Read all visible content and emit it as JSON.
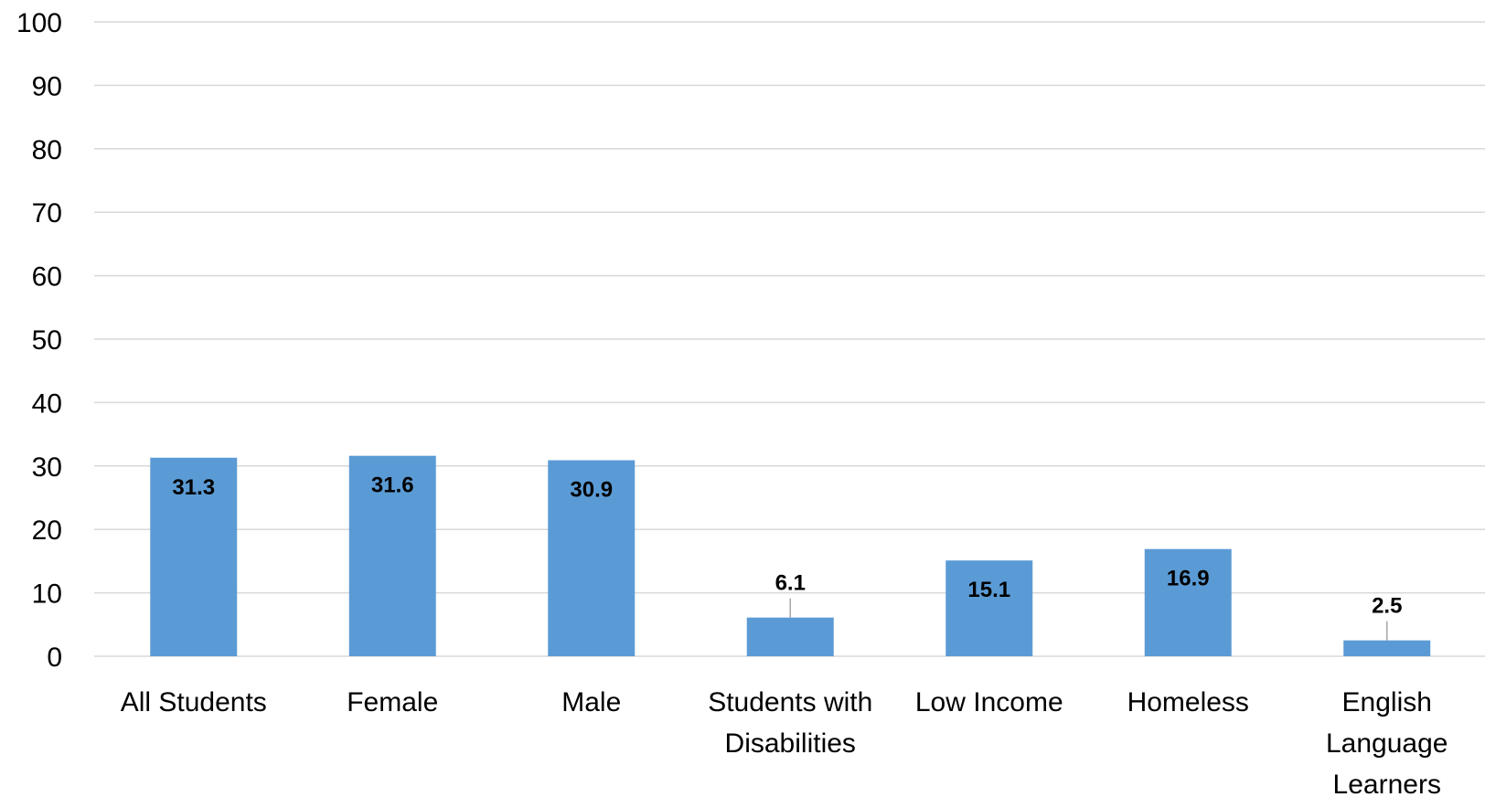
{
  "chart_data": {
    "type": "bar",
    "categories": [
      [
        "All Students"
      ],
      [
        "Female"
      ],
      [
        "Male"
      ],
      [
        "Students with",
        "Disabilities"
      ],
      [
        "Low Income"
      ],
      [
        "Homeless"
      ],
      [
        "English",
        "Language",
        "Learners"
      ]
    ],
    "values": [
      31.3,
      31.6,
      30.9,
      6.1,
      15.1,
      16.9,
      2.5
    ],
    "value_labels": [
      "31.3",
      "31.6",
      "30.9",
      "6.1",
      "15.1",
      "16.9",
      "2.5"
    ],
    "label_position": [
      "inside",
      "inside",
      "inside",
      "above",
      "inside",
      "inside",
      "above"
    ],
    "title": "",
    "xlabel": "",
    "ylabel": "",
    "ylim": [
      0,
      100
    ],
    "yticks": [
      "0",
      "10",
      "20",
      "30",
      "40",
      "50",
      "60",
      "70",
      "80",
      "90",
      "100"
    ],
    "grid": true,
    "legend": "none",
    "bar_color": "#5b9bd5",
    "grid_color": "#d9d9d9"
  }
}
